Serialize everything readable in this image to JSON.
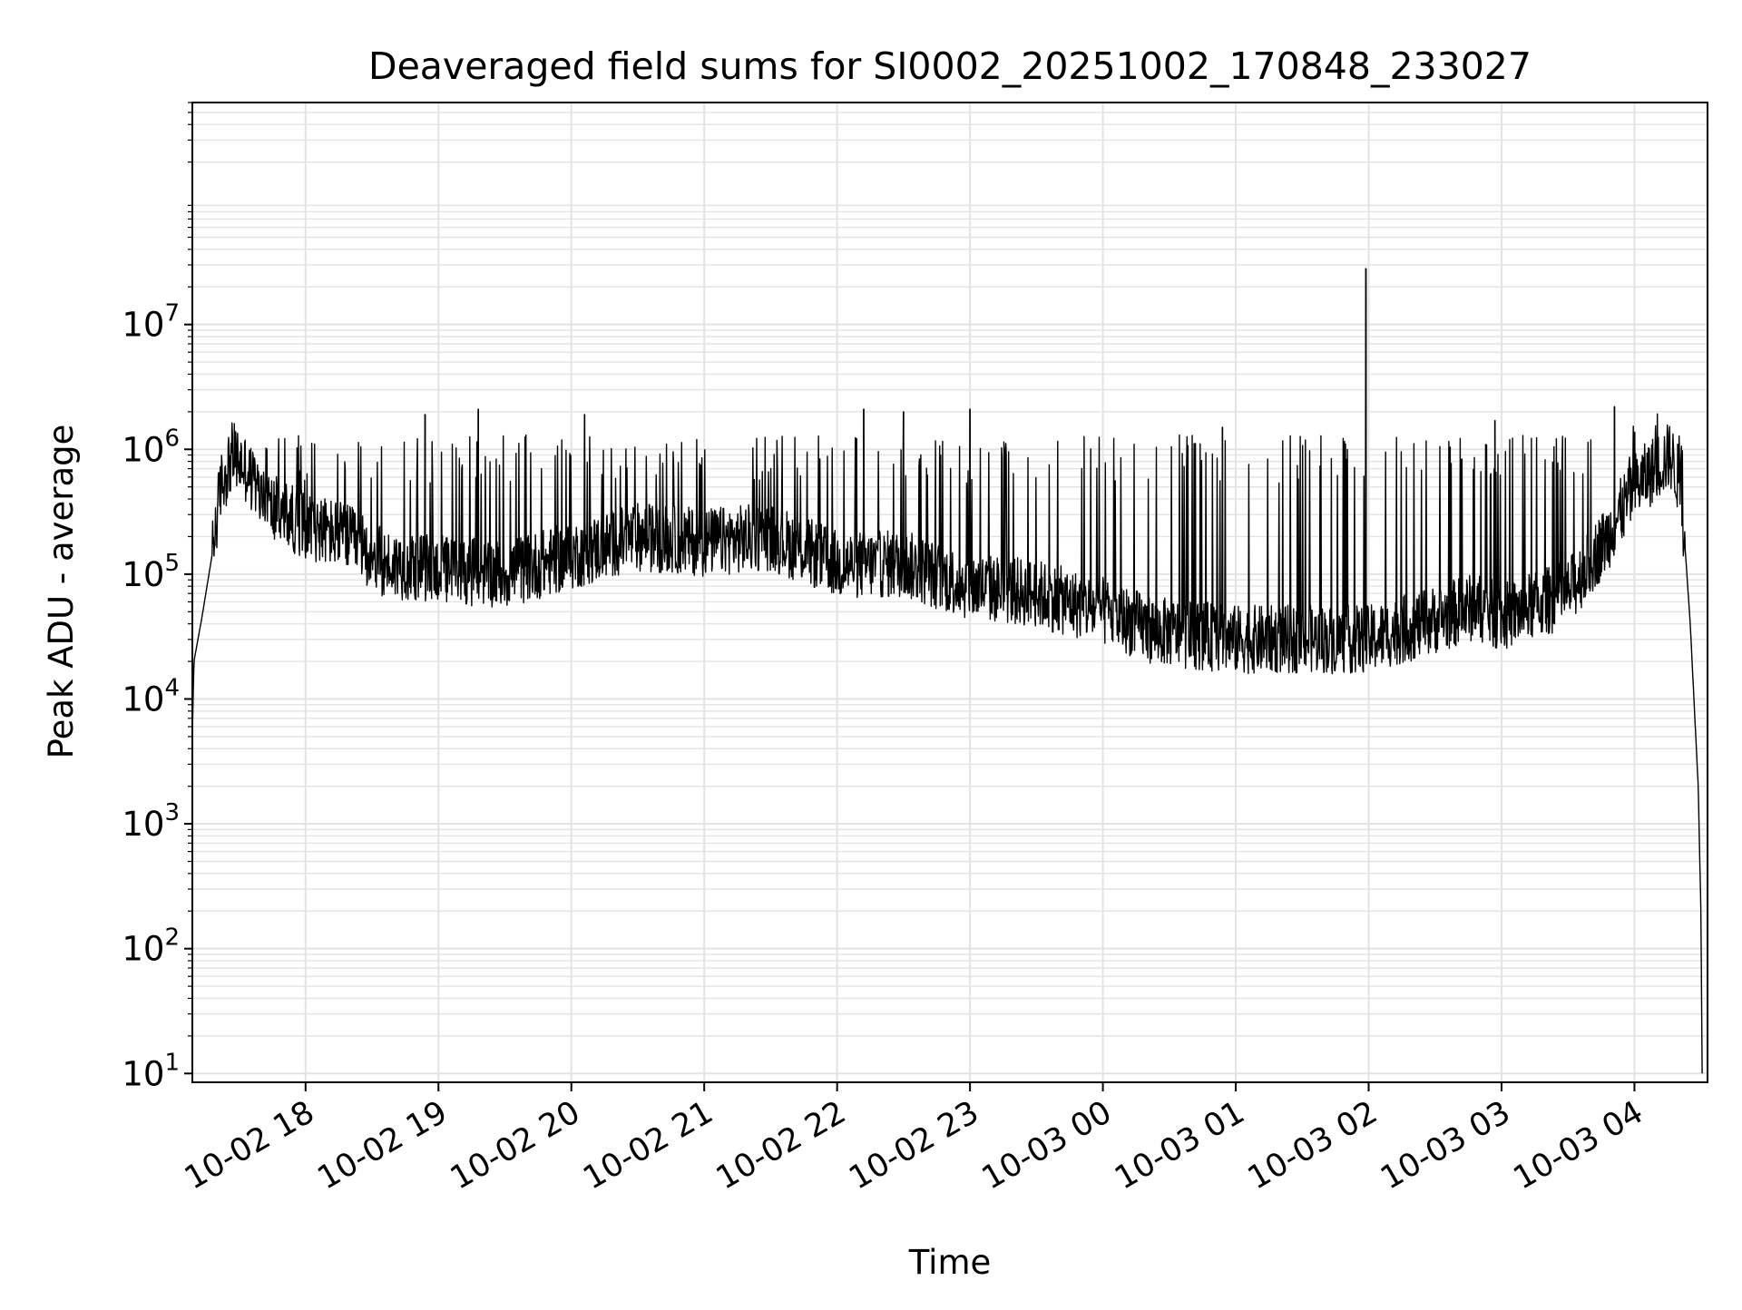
{
  "chart_data": {
    "type": "line",
    "title": "Deaveraged field sums for SI0002_20251002_170848_233027",
    "xlabel": "Time",
    "ylabel": "Peak ADU - average",
    "yscale": "log",
    "ylim": [
      8.5,
      600000000
    ],
    "xlim_hours_since_10_02_17_00": [
      17.148,
      28.55
    ],
    "grid": true,
    "line_color": "#000000",
    "grid_color": "#e3e3e3",
    "x_ticks": [
      {
        "hour": 18,
        "label": "10-02 18"
      },
      {
        "hour": 19,
        "label": "10-02 19"
      },
      {
        "hour": 20,
        "label": "10-02 20"
      },
      {
        "hour": 21,
        "label": "10-02 21"
      },
      {
        "hour": 22,
        "label": "10-02 22"
      },
      {
        "hour": 23,
        "label": "10-02 23"
      },
      {
        "hour": 24,
        "label": "10-03 00"
      },
      {
        "hour": 25,
        "label": "10-03 01"
      },
      {
        "hour": 26,
        "label": "10-03 02"
      },
      {
        "hour": 27,
        "label": "10-03 03"
      },
      {
        "hour": 28,
        "label": "10-03 04"
      }
    ],
    "y_ticks": [
      {
        "value": 10,
        "base": "10",
        "exp": "1"
      },
      {
        "value": 100,
        "base": "10",
        "exp": "2"
      },
      {
        "value": 1000,
        "base": "10",
        "exp": "3"
      },
      {
        "value": 10000,
        "base": "10",
        "exp": "4"
      },
      {
        "value": 100000,
        "base": "10",
        "exp": "5"
      },
      {
        "value": 1000000,
        "base": "10",
        "exp": "6"
      },
      {
        "value": 10000000,
        "base": "10",
        "exp": "7"
      }
    ],
    "series": [
      {
        "name": "deaveraged_field_sum",
        "baseline_profile": [
          {
            "x": 17.148,
            "y": 5000
          },
          {
            "x": 17.16,
            "y": 20000
          },
          {
            "x": 17.22,
            "y": 45000
          },
          {
            "x": 17.3,
            "y": 150000
          },
          {
            "x": 17.36,
            "y": 500000
          },
          {
            "x": 17.45,
            "y": 900000
          },
          {
            "x": 17.55,
            "y": 700000
          },
          {
            "x": 17.7,
            "y": 350000
          },
          {
            "x": 18.0,
            "y": 250000
          },
          {
            "x": 18.3,
            "y": 200000
          },
          {
            "x": 18.6,
            "y": 120000
          },
          {
            "x": 19.0,
            "y": 110000
          },
          {
            "x": 19.5,
            "y": 100000
          },
          {
            "x": 20.0,
            "y": 140000
          },
          {
            "x": 20.5,
            "y": 200000
          },
          {
            "x": 21.0,
            "y": 180000
          },
          {
            "x": 21.5,
            "y": 200000
          },
          {
            "x": 22.0,
            "y": 120000
          },
          {
            "x": 22.5,
            "y": 120000
          },
          {
            "x": 23.0,
            "y": 80000
          },
          {
            "x": 23.5,
            "y": 70000
          },
          {
            "x": 24.0,
            "y": 50000
          },
          {
            "x": 24.4,
            "y": 35000
          },
          {
            "x": 25.0,
            "y": 30000
          },
          {
            "x": 25.6,
            "y": 30000
          },
          {
            "x": 26.0,
            "y": 30000
          },
          {
            "x": 26.4,
            "y": 40000
          },
          {
            "x": 26.8,
            "y": 55000
          },
          {
            "x": 27.0,
            "y": 45000
          },
          {
            "x": 27.5,
            "y": 70000
          },
          {
            "x": 27.8,
            "y": 200000
          },
          {
            "x": 28.0,
            "y": 500000
          },
          {
            "x": 28.27,
            "y": 900000
          },
          {
            "x": 28.35,
            "y": 500000
          },
          {
            "x": 28.42,
            "y": 40000
          },
          {
            "x": 28.48,
            "y": 2000
          },
          {
            "x": 28.5,
            "y": 200
          },
          {
            "x": 28.51,
            "y": 10
          }
        ],
        "notable_peaks": [
          {
            "x": 25.98,
            "y": 28000000
          },
          {
            "x": 23.0,
            "y": 2100000
          },
          {
            "x": 22.2,
            "y": 2100000
          },
          {
            "x": 19.3,
            "y": 2100000
          },
          {
            "x": 27.85,
            "y": 2200000
          },
          {
            "x": 20.1,
            "y": 1900000
          },
          {
            "x": 18.9,
            "y": 1900000
          },
          {
            "x": 22.5,
            "y": 2000000
          },
          {
            "x": 24.9,
            "y": 1500000
          },
          {
            "x": 26.95,
            "y": 1700000
          }
        ]
      }
    ]
  }
}
